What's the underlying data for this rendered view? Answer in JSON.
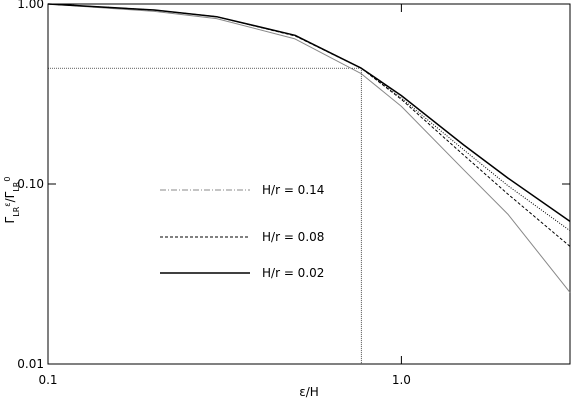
{
  "chart_data": {
    "type": "line",
    "xlabel": "ε/H",
    "ylabel_parts": [
      "Γ",
      "LR",
      "ε",
      "/Γ",
      "LR",
      "0"
    ],
    "xlog": true,
    "ylog": true,
    "xlim": [
      0.1,
      3.0
    ],
    "ylim": [
      0.01,
      1.0
    ],
    "xticks": [
      0.1,
      {
        "value": 1.0,
        "label": "1.0"
      }
    ],
    "yticks": [
      {
        "value": 0.01,
        "label": "0.01"
      },
      {
        "value": 0.1,
        "label": "0.10"
      },
      {
        "value": 1.0,
        "label": "1.00"
      }
    ],
    "x": [
      0.1,
      0.2,
      0.3,
      0.5,
      0.77,
      1.0,
      1.5,
      2.0,
      3.0
    ],
    "series": [
      {
        "name": "H/r = 0.14",
        "color": "#888888",
        "dash": "none",
        "width": 1,
        "values": [
          1.0,
          0.91,
          0.83,
          0.64,
          0.41,
          0.27,
          0.12,
          0.068,
          0.025
        ]
      },
      {
        "name": "H/r = 0.08",
        "color": "#000000",
        "dash": "3,2",
        "width": 1,
        "values": [
          1.0,
          0.925,
          0.85,
          0.665,
          0.44,
          0.295,
          0.145,
          0.088,
          0.045
        ]
      },
      {
        "name": "H/r = 0.02",
        "color": "#000000",
        "dash": "none",
        "width": 1.5,
        "values": [
          1.0,
          0.926,
          0.85,
          0.67,
          0.44,
          0.31,
          0.165,
          0.108,
          0.062
        ]
      },
      {
        "color": "#000000",
        "dash": "1,1.5",
        "width": 1,
        "values": [
          1.0,
          0.926,
          0.85,
          0.668,
          0.44,
          0.3,
          0.155,
          0.098,
          0.055
        ]
      }
    ],
    "reference_lines": {
      "x": 0.77,
      "y": 0.44
    },
    "legend_samples": [
      "6,2,1,2",
      "3,2",
      "none"
    ]
  }
}
